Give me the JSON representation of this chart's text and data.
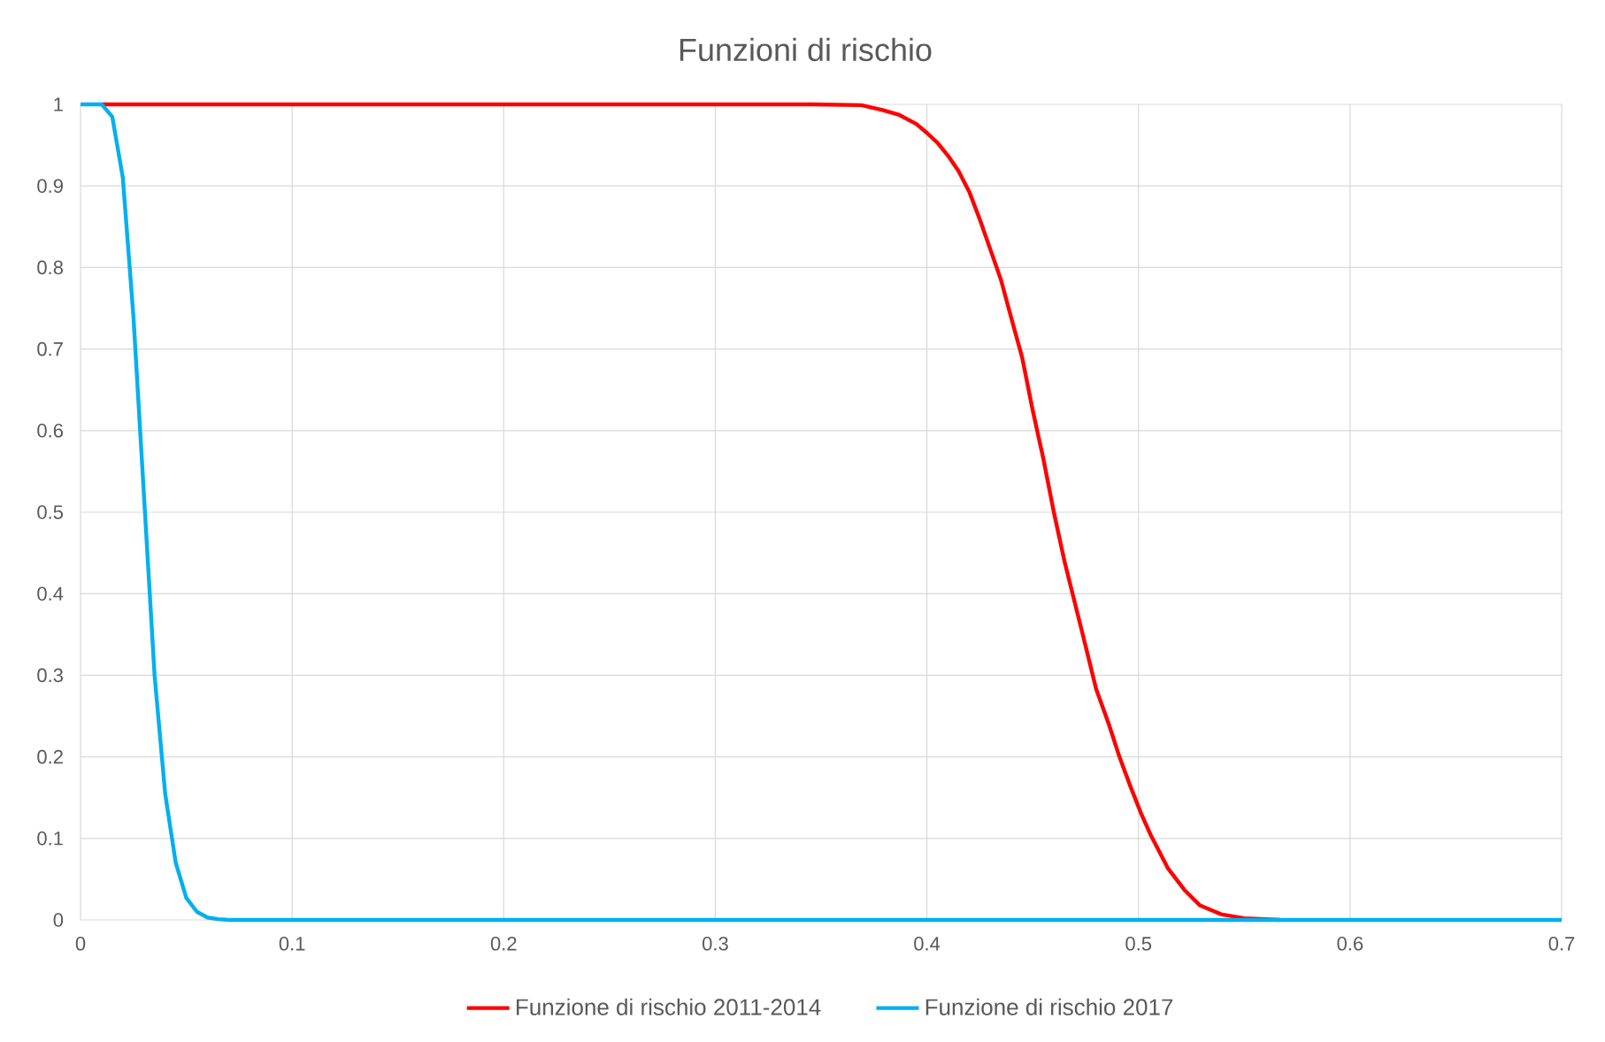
{
  "chart_data": {
    "type": "line",
    "title": "Funzioni di rischio",
    "xlim": [
      0,
      0.7
    ],
    "xticks": [
      0,
      0.1,
      0.2,
      0.3,
      0.4,
      0.5,
      0.6,
      0.7
    ],
    "ylim": [
      0,
      1
    ],
    "yticks": [
      0,
      0.1,
      0.2,
      0.3,
      0.4,
      0.5,
      0.6,
      0.7,
      0.8,
      0.9,
      1
    ],
    "grid": true,
    "legend": "bottom",
    "marker": "none",
    "line_style": "solid",
    "series": [
      {
        "name": "Funzione di rischio 2011-2014",
        "color": "#ff0000",
        "x": [
          0.01,
          0.1,
          0.2,
          0.3,
          0.346,
          0.369,
          0.379,
          0.387,
          0.395,
          0.4,
          0.405,
          0.41,
          0.415,
          0.42,
          0.425,
          0.43,
          0.435,
          0.44,
          0.445,
          0.45,
          0.455,
          0.46,
          0.465,
          0.47,
          0.475,
          0.48,
          0.486,
          0.491,
          0.496,
          0.501,
          0.506,
          0.514,
          0.522,
          0.529,
          0.539,
          0.55,
          0.567
        ],
        "values": [
          1,
          1,
          1,
          1,
          1,
          0.999,
          0.993,
          0.987,
          0.976,
          0.965,
          0.953,
          0.937,
          0.918,
          0.893,
          0.859,
          0.822,
          0.785,
          0.737,
          0.69,
          0.625,
          0.566,
          0.5,
          0.44,
          0.388,
          0.336,
          0.283,
          0.24,
          0.2,
          0.165,
          0.132,
          0.103,
          0.063,
          0.036,
          0.018,
          0.007,
          0.002,
          0
        ]
      },
      {
        "name": "Funzione di rischio 2017",
        "color": "#00b0f0",
        "x": [
          0,
          0.005,
          0.01,
          0.015,
          0.02,
          0.025,
          0.03,
          0.035,
          0.04,
          0.045,
          0.05,
          0.055,
          0.06,
          0.065,
          0.07,
          0.1,
          0.2,
          0.3,
          0.4,
          0.5,
          0.6,
          0.7
        ],
        "values": [
          1,
          1,
          1,
          0.985,
          0.91,
          0.74,
          0.52,
          0.3,
          0.155,
          0.07,
          0.027,
          0.01,
          0.003,
          0.001,
          0,
          0,
          0,
          0,
          0,
          0,
          0,
          0
        ]
      }
    ]
  }
}
